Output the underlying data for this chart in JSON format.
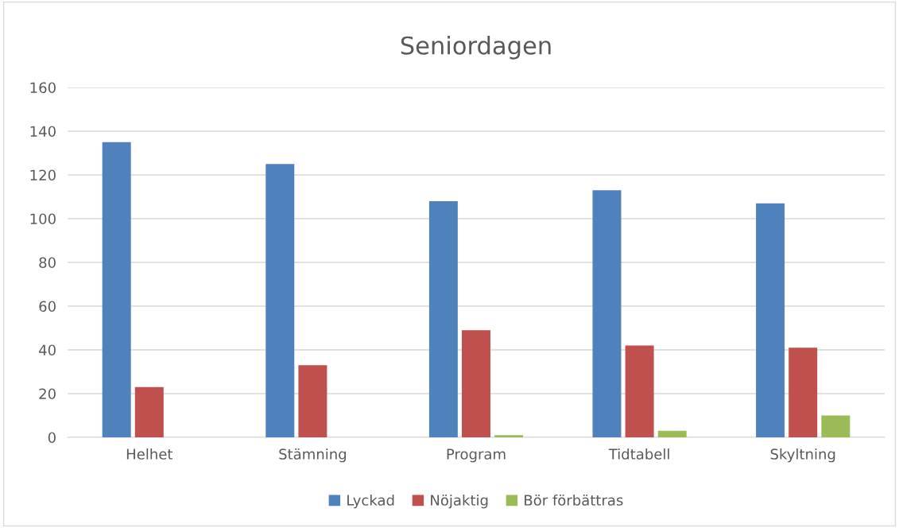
{
  "chart_data": {
    "type": "bar",
    "title": "Seniordagen",
    "categories": [
      "Helhet",
      "Stämning",
      "Program",
      "Tidtabell",
      "Skyltning"
    ],
    "series": [
      {
        "name": "Lyckad",
        "color": "#4f81bd",
        "values": [
          135,
          125,
          108,
          113,
          107
        ]
      },
      {
        "name": "Nöjaktig",
        "color": "#c0504d",
        "values": [
          23,
          33,
          49,
          42,
          41
        ]
      },
      {
        "name": "Bör förbättras",
        "color": "#9bbb59",
        "values": [
          0,
          0,
          1,
          3,
          10
        ]
      }
    ],
    "ylim": [
      0,
      160
    ],
    "yticks": [
      0,
      20,
      40,
      60,
      80,
      100,
      120,
      140,
      160
    ],
    "grid": "y",
    "legend": "bottom"
  }
}
